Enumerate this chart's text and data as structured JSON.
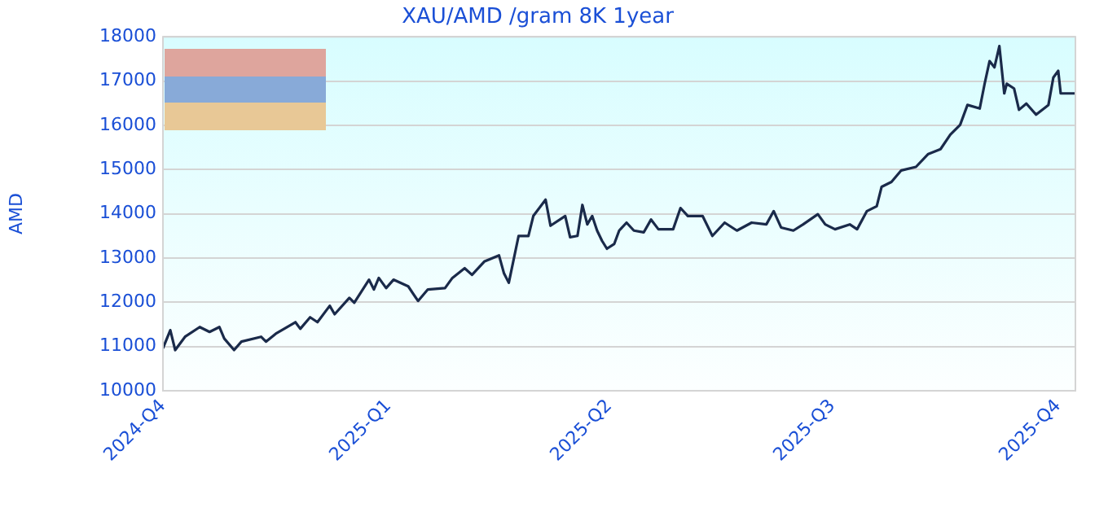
{
  "chart_data": {
    "type": "line",
    "title": "XAU/AMD /gram 8K 1year",
    "ylabel": "AMD",
    "x": [
      "2024-10-01",
      "2024-10-04",
      "2024-10-06",
      "2024-10-10",
      "2024-10-16",
      "2024-10-20",
      "2024-10-24",
      "2024-10-26",
      "2024-10-30",
      "2024-11-02",
      "2024-11-10",
      "2024-11-12",
      "2024-11-16",
      "2024-11-24",
      "2024-11-26",
      "2024-11-30",
      "2024-12-03",
      "2024-12-08",
      "2024-12-10",
      "2024-12-16",
      "2024-12-18",
      "2024-12-24",
      "2024-12-26",
      "2024-12-28",
      "2024-12-31",
      "2025-01-03",
      "2025-01-09",
      "2025-01-13",
      "2025-01-17",
      "2025-01-24",
      "2025-01-27",
      "2025-02-01",
      "2025-02-04",
      "2025-02-09",
      "2025-02-15",
      "2025-02-17",
      "2025-02-19",
      "2025-02-23",
      "2025-02-27",
      "2025-03-01",
      "2025-03-06",
      "2025-03-08",
      "2025-03-14",
      "2025-03-16",
      "2025-03-19",
      "2025-03-21",
      "2025-03-23",
      "2025-03-25",
      "2025-03-27",
      "2025-03-29",
      "2025-03-31",
      "2025-04-03",
      "2025-04-05",
      "2025-04-08",
      "2025-04-11",
      "2025-04-15",
      "2025-04-18",
      "2025-04-21",
      "2025-04-27",
      "2025-04-30",
      "2025-05-03",
      "2025-05-09",
      "2025-05-13",
      "2025-05-18",
      "2025-05-23",
      "2025-05-29",
      "2025-06-04",
      "2025-06-07",
      "2025-06-10",
      "2025-06-15",
      "2025-06-19",
      "2025-06-25",
      "2025-06-28",
      "2025-07-02",
      "2025-07-08",
      "2025-07-11",
      "2025-07-15",
      "2025-07-19",
      "2025-07-21",
      "2025-07-25",
      "2025-07-29",
      "2025-08-04",
      "2025-08-09",
      "2025-08-14",
      "2025-08-18",
      "2025-08-22",
      "2025-08-25",
      "2025-08-30",
      "2025-09-01",
      "2025-09-03",
      "2025-09-05",
      "2025-09-07",
      "2025-09-09",
      "2025-09-10",
      "2025-09-13",
      "2025-09-15",
      "2025-09-18",
      "2025-09-22",
      "2025-09-27",
      "2025-09-29",
      "2025-10-01",
      "2025-10-02",
      "2025-10-06",
      "2025-10-08"
    ],
    "series": [
      {
        "color": "#1a2a4a",
        "values": [
          10960,
          11370,
          10920,
          11220,
          11440,
          11330,
          11440,
          11180,
          10920,
          11110,
          11220,
          11110,
          11290,
          11550,
          11400,
          11660,
          11550,
          11920,
          11730,
          12100,
          11990,
          12510,
          12290,
          12550,
          12320,
          12510,
          12360,
          12030,
          12290,
          12320,
          12550,
          12770,
          12620,
          12920,
          13060,
          12660,
          12440,
          13500,
          13500,
          13950,
          14320,
          13730,
          13950,
          13470,
          13500,
          14200,
          13760,
          13950,
          13620,
          13390,
          13210,
          13320,
          13620,
          13800,
          13620,
          13580,
          13870,
          13650,
          13650,
          14130,
          13950,
          13950,
          13500,
          13800,
          13620,
          13800,
          13760,
          14060,
          13690,
          13620,
          13760,
          13990,
          13760,
          13650,
          13760,
          13650,
          14060,
          14170,
          14610,
          14720,
          14980,
          15060,
          15350,
          15460,
          15790,
          16010,
          16460,
          16380,
          16940,
          17450,
          17310,
          17790,
          16720,
          16940,
          16830,
          16350,
          16490,
          16240,
          16460,
          17080,
          17230,
          16720,
          16720,
          16720
        ]
      }
    ],
    "xlim": [
      "2024-10-01",
      "2025-10-08"
    ],
    "xticks": [
      {
        "value": "2024-10-01",
        "label": "2024-Q4"
      },
      {
        "value": "2025-01-01",
        "label": "2025-Q1"
      },
      {
        "value": "2025-04-01",
        "label": "2025-Q2"
      },
      {
        "value": "2025-07-01",
        "label": "2025-Q3"
      },
      {
        "value": "2025-10-01",
        "label": "2025-Q4"
      }
    ],
    "ylim": [
      10000,
      18000
    ],
    "yticks": [
      10000,
      11000,
      12000,
      13000,
      14000,
      15000,
      16000,
      17000,
      18000
    ],
    "grid": "y",
    "legend": false,
    "marker": "none",
    "line_style": "solid"
  }
}
